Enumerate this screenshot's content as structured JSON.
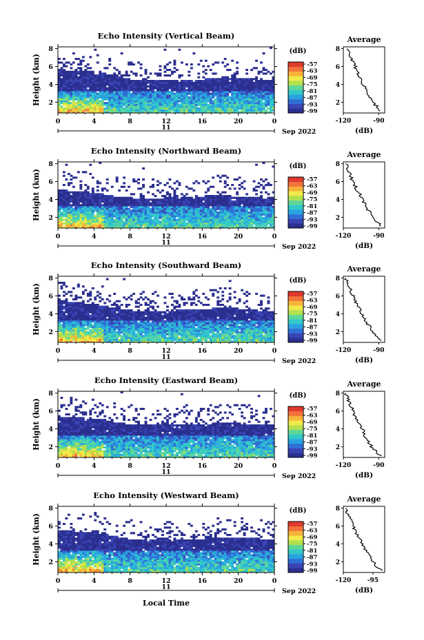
{
  "figure": {
    "x_axis_title": "Local Time",
    "date_label": "Sep 2022",
    "day_label": "11",
    "colorbar_unit": "(dB)",
    "colorbar_ticks": [
      "-57",
      "-63",
      "-69",
      "-75",
      "-81",
      "-87",
      "-93",
      "-99"
    ],
    "colormap": [
      "#2b2f8f",
      "#3a44b4",
      "#2f6fd6",
      "#2aa3e0",
      "#32c9c9",
      "#5fd79a",
      "#b4e04e",
      "#f2e94a",
      "#f7b33a",
      "#f2743a",
      "#e03a2e"
    ],
    "profile_title": "Average",
    "profile_xlabel": "(dB)"
  },
  "chart_data": [
    {
      "type": "heatmap",
      "title": "Echo Intensity (Vertical Beam)",
      "xlabel": "",
      "ylabel": "Height (km)",
      "x_ticks": [
        "0",
        "4",
        "8",
        "12",
        "16",
        "20",
        "0"
      ],
      "y_ticks": [
        "2",
        "4",
        "6",
        "8"
      ],
      "xlim": [
        0,
        24
      ],
      "ylim": [
        0.8,
        8.2
      ],
      "clim": [
        -99,
        -57
      ],
      "top_height_km": [
        5.7,
        5.6,
        5.5,
        5.5,
        5.4,
        5.3,
        5.0,
        4.8,
        4.6,
        4.5,
        4.5,
        4.4,
        4.4,
        4.5,
        4.5,
        4.6,
        4.6,
        4.7,
        4.8,
        4.8,
        4.8,
        4.7,
        4.6,
        4.5,
        4.5
      ],
      "profile": {
        "heights_km": [
          1,
          2,
          3,
          4,
          5,
          6,
          7,
          8
        ],
        "values_db": [
          -88,
          -95,
          -100,
          -103,
          -107,
          -110,
          -113,
          -117
        ],
        "xlim": [
          -120,
          -85
        ],
        "x_ticks": [
          "-120",
          "-90"
        ],
        "y_ticks": [
          "2",
          "4",
          "6",
          "8"
        ]
      }
    },
    {
      "type": "heatmap",
      "title": "Echo Intensity (Northward Beam)",
      "xlabel": "",
      "ylabel": "Height (km)",
      "x_ticks": [
        "0",
        "4",
        "8",
        "12",
        "16",
        "20",
        "0"
      ],
      "y_ticks": [
        "2",
        "4",
        "6",
        "8"
      ],
      "xlim": [
        0,
        24
      ],
      "ylim": [
        0.8,
        8.2
      ],
      "clim": [
        -99,
        -57
      ],
      "top_height_km": [
        5.1,
        5.0,
        5.0,
        4.9,
        4.8,
        4.6,
        4.4,
        4.3,
        4.2,
        4.1,
        4.1,
        4.1,
        4.2,
        4.2,
        4.3,
        4.3,
        4.4,
        4.4,
        4.5,
        4.4,
        4.3,
        4.2,
        4.2,
        4.2,
        4.2
      ],
      "profile": {
        "heights_km": [
          1,
          2,
          3,
          4,
          5,
          6,
          7,
          8
        ],
        "values_db": [
          -88,
          -95,
          -100,
          -104,
          -108,
          -112,
          -115,
          -118
        ],
        "xlim": [
          -120,
          -85
        ],
        "x_ticks": [
          "-120",
          "-90"
        ],
        "y_ticks": [
          "2",
          "4",
          "6",
          "8"
        ]
      }
    },
    {
      "type": "heatmap",
      "title": "Echo Intensity (Southward Beam)",
      "xlabel": "",
      "ylabel": "Height (km)",
      "x_ticks": [
        "0",
        "4",
        "8",
        "12",
        "16",
        "20",
        "0"
      ],
      "y_ticks": [
        "2",
        "4",
        "6",
        "8"
      ],
      "xlim": [
        0,
        24
      ],
      "ylim": [
        0.8,
        8.2
      ],
      "clim": [
        -99,
        -57
      ],
      "top_height_km": [
        5.5,
        5.4,
        5.3,
        5.2,
        5.1,
        4.9,
        4.7,
        4.5,
        4.4,
        4.3,
        4.3,
        4.3,
        4.3,
        4.4,
        4.4,
        4.5,
        4.5,
        4.6,
        4.7,
        4.7,
        4.6,
        4.5,
        4.4,
        4.3,
        4.3
      ],
      "profile": {
        "heights_km": [
          1,
          2,
          3,
          4,
          5,
          6,
          7,
          8
        ],
        "values_db": [
          -88,
          -95,
          -100,
          -104,
          -108,
          -112,
          -115,
          -118
        ],
        "xlim": [
          -120,
          -85
        ],
        "x_ticks": [
          "-120",
          "-90"
        ],
        "y_ticks": [
          "2",
          "4",
          "6",
          "8"
        ]
      }
    },
    {
      "type": "heatmap",
      "title": "Echo Intensity (Eastward Beam)",
      "xlabel": "",
      "ylabel": "Height (km)",
      "x_ticks": [
        "0",
        "4",
        "8",
        "12",
        "16",
        "20",
        "0"
      ],
      "y_ticks": [
        "2",
        "4",
        "6",
        "8"
      ],
      "xlim": [
        0,
        24
      ],
      "ylim": [
        0.8,
        8.2
      ],
      "clim": [
        -99,
        -57
      ],
      "top_height_km": [
        5.4,
        5.3,
        5.3,
        5.2,
        5.1,
        5.0,
        4.8,
        4.6,
        4.5,
        4.4,
        4.4,
        4.4,
        4.4,
        4.5,
        4.5,
        4.5,
        4.6,
        4.6,
        4.7,
        4.7,
        4.6,
        4.5,
        4.4,
        4.4,
        4.4
      ],
      "profile": {
        "heights_km": [
          1,
          2,
          3,
          4,
          5,
          6,
          7,
          8
        ],
        "values_db": [
          -89,
          -96,
          -101,
          -104,
          -108,
          -112,
          -115,
          -118
        ],
        "xlim": [
          -120,
          -85
        ],
        "x_ticks": [
          "-120",
          "-90"
        ],
        "y_ticks": [
          "2",
          "4",
          "6",
          "8"
        ]
      }
    },
    {
      "type": "heatmap",
      "title": "Echo Intensity (Westward Beam)",
      "xlabel": "",
      "ylabel": "Height (km)",
      "x_ticks": [
        "0",
        "4",
        "8",
        "12",
        "16",
        "20",
        "0"
      ],
      "y_ticks": [
        "2",
        "4",
        "6",
        "8"
      ],
      "xlim": [
        0,
        24
      ],
      "ylim": [
        0.8,
        8.2
      ],
      "clim": [
        -99,
        -57
      ],
      "top_height_km": [
        5.6,
        5.5,
        5.4,
        5.4,
        5.3,
        5.1,
        4.9,
        4.7,
        4.5,
        4.4,
        4.4,
        4.4,
        4.4,
        4.5,
        4.5,
        4.6,
        4.6,
        4.7,
        4.8,
        4.8,
        4.8,
        4.7,
        4.6,
        4.6,
        4.5
      ],
      "profile": {
        "heights_km": [
          1,
          2,
          3,
          4,
          5,
          6,
          7,
          8
        ],
        "values_db": [
          -88,
          -95,
          -100,
          -104,
          -108,
          -112,
          -115,
          -118
        ],
        "xlim": [
          -120,
          -85
        ],
        "x_ticks": [
          "-120",
          "-95"
        ],
        "y_ticks": [
          "2",
          "4",
          "6",
          "8"
        ]
      }
    }
  ]
}
